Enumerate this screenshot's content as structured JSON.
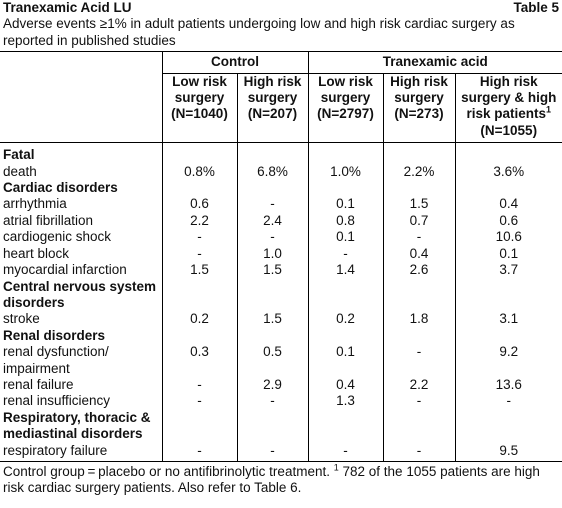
{
  "header": {
    "title": "Tranexamic Acid LU",
    "label": "Table 5"
  },
  "subtitle": [
    "Adverse events ≥1% in adult patients undergoing low and high risk cardiac surgery as",
    "reported in published studies"
  ],
  "table": {
    "groups": [
      {
        "name": "Control",
        "span": 2
      },
      {
        "name": "Tranexamic acid",
        "span": 3
      }
    ],
    "columns": [
      {
        "lines": [
          "Low risk",
          "surgery",
          "(N=1040)"
        ]
      },
      {
        "lines": [
          "High risk",
          "surgery",
          "(N=207)"
        ]
      },
      {
        "lines": [
          "Low risk",
          "surgery",
          "(N=2797)"
        ]
      },
      {
        "lines": [
          "High risk",
          "surgery",
          "(N=273)"
        ]
      },
      {
        "lines": [
          "High risk",
          "surgery & high",
          "risk patients",
          "(N=1055)"
        ],
        "note_mark": "1",
        "note_line": 2
      }
    ],
    "rows": [
      {
        "heading": [
          "Fatal"
        ]
      },
      {
        "label": [
          "death"
        ],
        "values": [
          "0.8%",
          "6.8%",
          "1.0%",
          "2.2%",
          "3.6%"
        ]
      },
      {
        "heading": [
          "Cardiac disorders"
        ]
      },
      {
        "label": [
          "arrhythmia"
        ],
        "values": [
          "0.6",
          "-",
          "0.1",
          "1.5",
          "0.4"
        ]
      },
      {
        "label": [
          "atrial fibrillation"
        ],
        "values": [
          "2.2",
          "2.4",
          "0.8",
          "0.7",
          "0.6"
        ]
      },
      {
        "label": [
          "cardiogenic shock"
        ],
        "values": [
          "-",
          "-",
          "0.1",
          "-",
          "10.6"
        ]
      },
      {
        "label": [
          "heart block"
        ],
        "values": [
          "-",
          "1.0",
          "-",
          "0.4",
          "0.1"
        ]
      },
      {
        "label": [
          "myocardial infarction"
        ],
        "values": [
          "1.5",
          "1.5",
          "1.4",
          "2.6",
          "3.7"
        ]
      },
      {
        "heading": [
          "Central nervous system",
          "disorders"
        ]
      },
      {
        "label": [
          "stroke"
        ],
        "values": [
          "0.2",
          "1.5",
          "0.2",
          "1.8",
          "3.1"
        ]
      },
      {
        "heading": [
          "Renal disorders"
        ]
      },
      {
        "label": [
          "renal dysfunction/",
          "impairment"
        ],
        "values": [
          "0.3",
          "0.5",
          "0.1",
          "-",
          "9.2"
        ]
      },
      {
        "label": [
          "renal failure"
        ],
        "values": [
          "-",
          "2.9",
          "0.4",
          "2.2",
          "13.6"
        ]
      },
      {
        "label": [
          "renal insufficiency"
        ],
        "values": [
          "-",
          "-",
          "1.3",
          "-",
          "-"
        ]
      },
      {
        "heading": [
          "Respiratory, thoracic &",
          "mediastinal disorders"
        ]
      },
      {
        "label": [
          "respiratory failure"
        ],
        "values": [
          "-",
          "-",
          "-",
          "-",
          "9.5"
        ]
      }
    ]
  },
  "footer": {
    "text": "Control group = placebo or no antifibrinolytic treatment.",
    "note_mark": "1",
    "note": "782 of the 1055 patients are high risk cardiac surgery patients. Also refer to Table 6."
  }
}
